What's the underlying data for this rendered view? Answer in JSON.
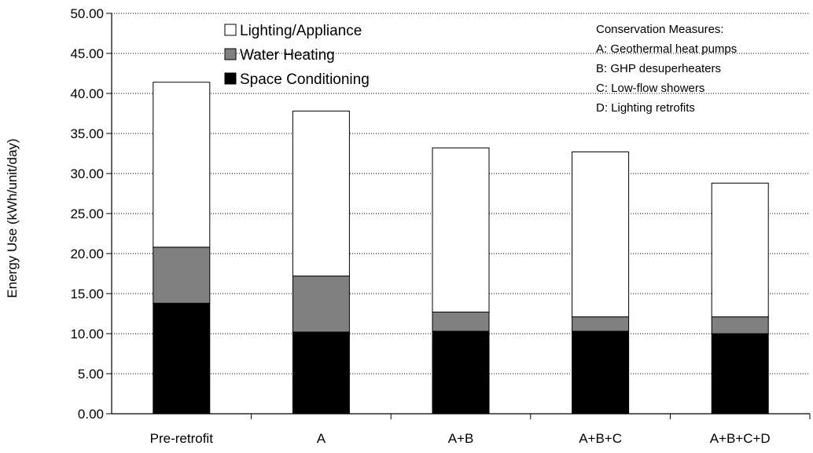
{
  "chart_data": {
    "type": "bar",
    "stacked": true,
    "categories": [
      "Pre-retrofit",
      "A",
      "A+B",
      "A+B+C",
      "A+B+C+D"
    ],
    "series": [
      {
        "name": "Space Conditioning",
        "color": "#000000",
        "values": [
          13.8,
          10.2,
          10.3,
          10.3,
          10.0
        ]
      },
      {
        "name": "Water Heating",
        "color": "#808080",
        "values": [
          7.0,
          7.0,
          2.4,
          1.8,
          2.1
        ]
      },
      {
        "name": "Lighting/Appliance",
        "color": "#ffffff",
        "values": [
          20.6,
          20.6,
          20.5,
          20.6,
          16.7
        ]
      }
    ],
    "legend_order": [
      "Lighting/Appliance",
      "Water Heating",
      "Space Conditioning"
    ],
    "ylabel": "Energy Use (kWh/unit/day)",
    "ylim": [
      0,
      50
    ],
    "yticks": [
      "0.00",
      "5.00",
      "10.00",
      "15.00",
      "20.00",
      "25.00",
      "30.00",
      "35.00",
      "40.00",
      "45.00",
      "50.00"
    ],
    "grid": "horizontal-dotted",
    "legend_position": "top-left",
    "annotation": {
      "lines": [
        "Conservation Measures:",
        "A: Geothermal heat pumps",
        "B: GHP desuperheaters",
        "C: Low-flow showers",
        "D: Lighting retrofits"
      ],
      "position": "top-right"
    }
  }
}
